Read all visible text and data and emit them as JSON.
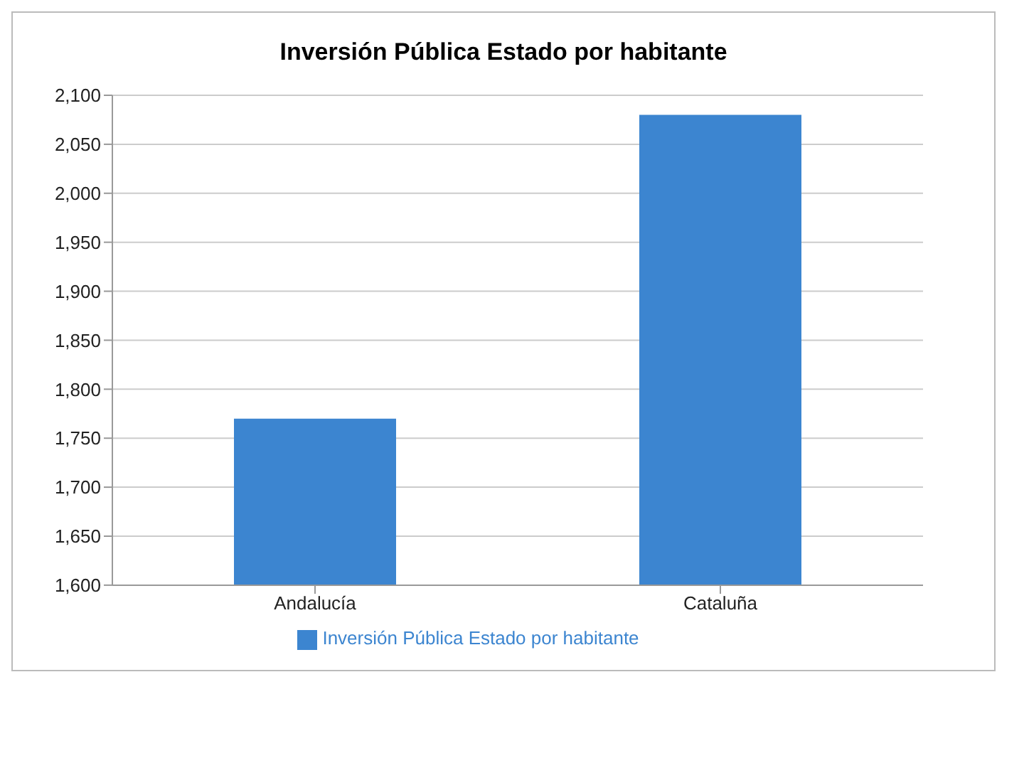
{
  "chart_data": {
    "type": "bar",
    "title": "Inversión Pública Estado por habitante",
    "categories": [
      "Andalucía",
      "Cataluña"
    ],
    "series": [
      {
        "name": "Inversión Pública Estado por habitante",
        "color": "#3c85d0",
        "values": [
          1770,
          2080
        ]
      }
    ],
    "ylim": [
      1600,
      2100
    ],
    "yticks": [
      {
        "value": 1600,
        "label": "1,600"
      },
      {
        "value": 1650,
        "label": "1,650"
      },
      {
        "value": 1700,
        "label": "1,700"
      },
      {
        "value": 1750,
        "label": "1,750"
      },
      {
        "value": 1800,
        "label": "1,800"
      },
      {
        "value": 1850,
        "label": "1,850"
      },
      {
        "value": 1900,
        "label": "1,900"
      },
      {
        "value": 1950,
        "label": "1,950"
      },
      {
        "value": 2000,
        "label": "2,000"
      },
      {
        "value": 2050,
        "label": "2,050"
      },
      {
        "value": 2100,
        "label": "2,100"
      }
    ],
    "grid": "y",
    "legend": "bottom"
  }
}
